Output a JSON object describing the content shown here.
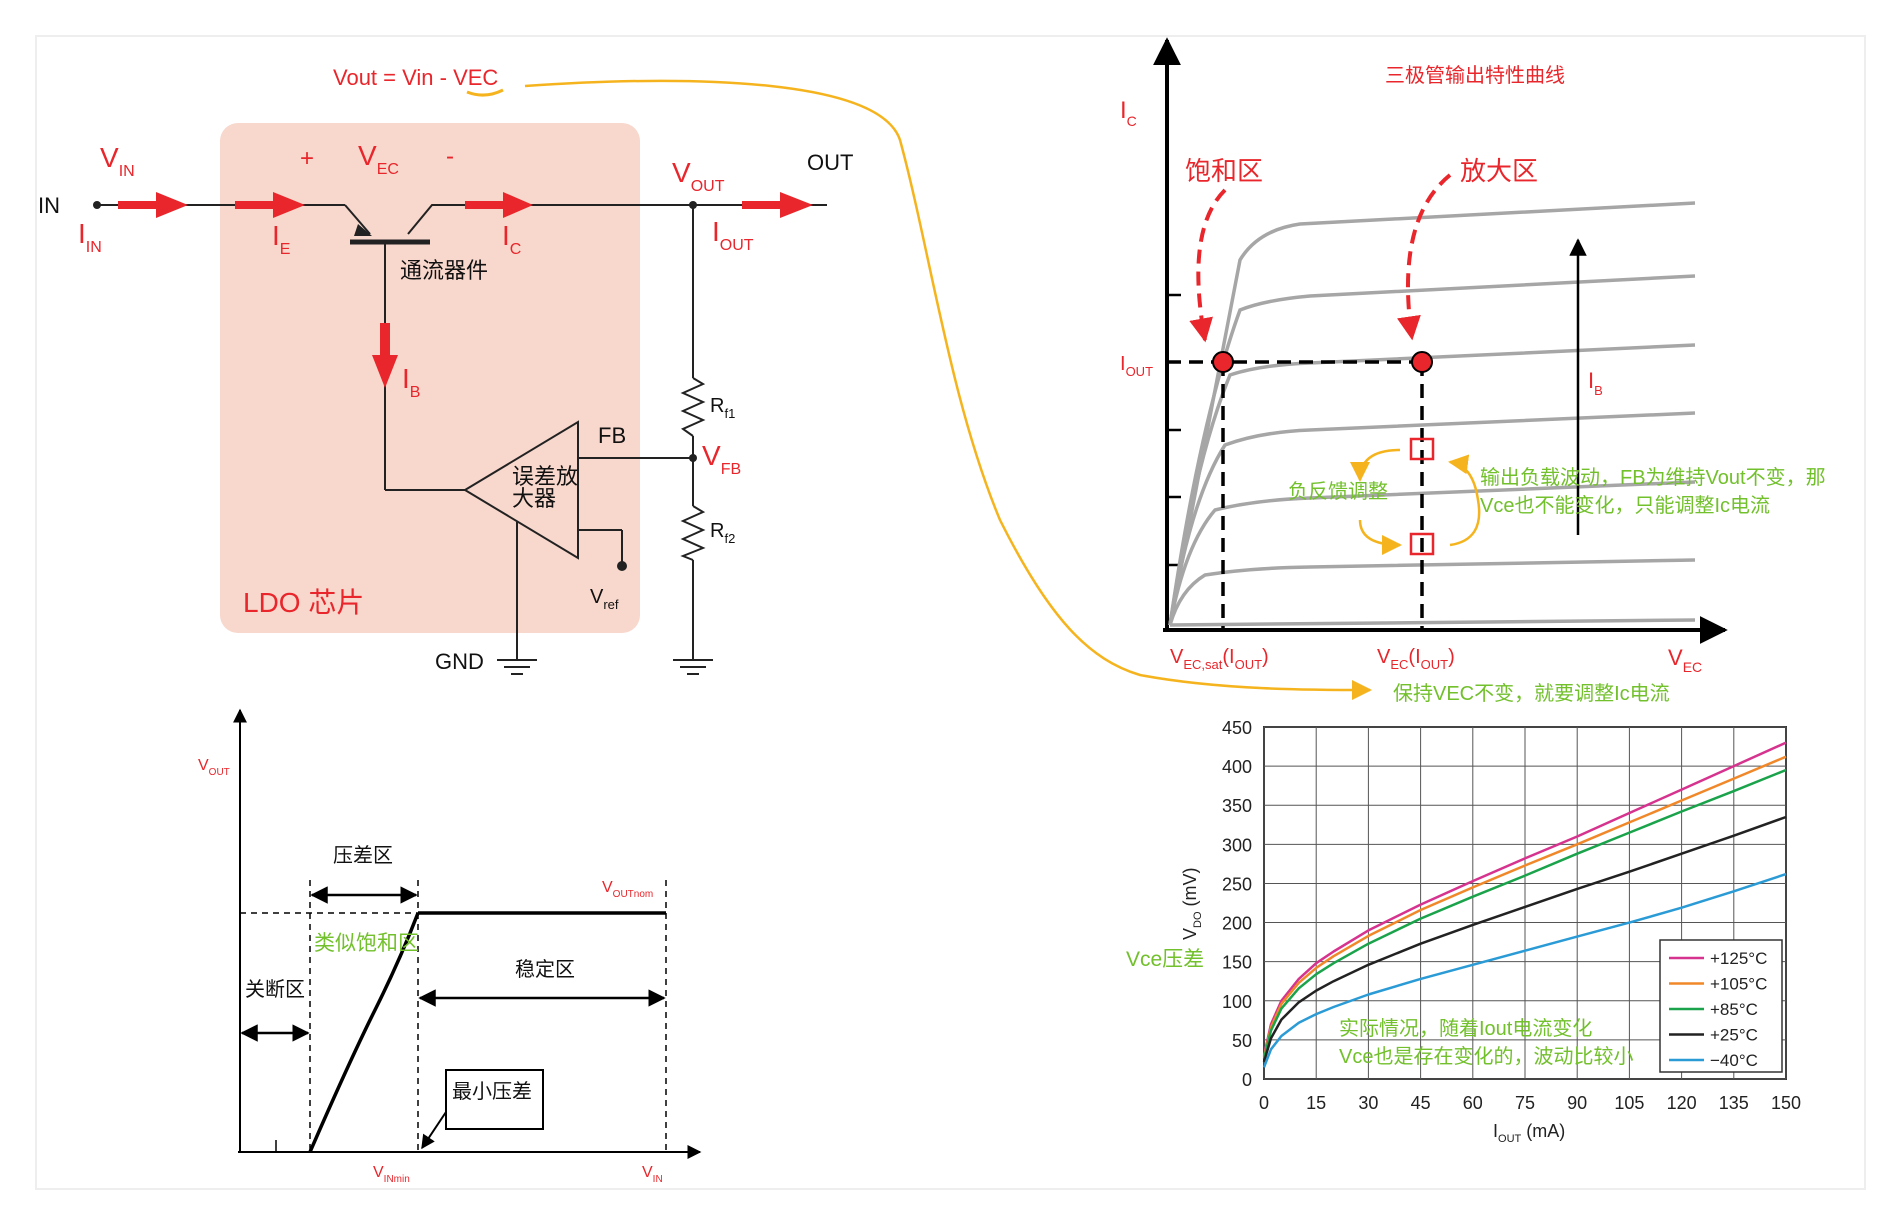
{
  "formula": "Vout = Vin - VEC",
  "ldo": {
    "chip_label": "LDO 芯片",
    "in_label": "IN",
    "out_label": "OUT",
    "gnd_label": "GND",
    "fb_label": "FB",
    "pass_device": "通流器件",
    "amp_line1": "误差放",
    "amp_line2": "大器",
    "plus": "+",
    "minus": "-",
    "v_in": {
      "main": "V",
      "sub": "IN"
    },
    "i_in": {
      "main": "I",
      "sub": "IN"
    },
    "i_e": {
      "main": "I",
      "sub": "E"
    },
    "v_ec": {
      "main": "V",
      "sub": "EC"
    },
    "i_c": {
      "main": "I",
      "sub": "C"
    },
    "v_out": {
      "main": "V",
      "sub": "OUT"
    },
    "i_out": {
      "main": "I",
      "sub": "OUT"
    },
    "i_b": {
      "main": "I",
      "sub": "B"
    },
    "r_f1": {
      "main": "R",
      "sub": "f1"
    },
    "r_f2": {
      "main": "R",
      "sub": "f2"
    },
    "v_fb": {
      "main": "V",
      "sub": "FB"
    },
    "v_ref": {
      "main": "V",
      "sub": "ref"
    }
  },
  "transistor_chart": {
    "title": "三极管输出特性曲线",
    "y_axis": {
      "main": "I",
      "sub": "C"
    },
    "x_axis": {
      "main": "V",
      "sub": "EC"
    },
    "iout_label": {
      "main": "I",
      "sub": "OUT"
    },
    "ib_label": {
      "main": "I",
      "sub": "B"
    },
    "saturation_region": "饱和区",
    "amplification_region": "放大区",
    "x_mark_sat": "V",
    "x_mark_sat_sub": "EC,sat",
    "x_mark_sat_paren": "(I",
    "x_mark_sat_paren_sub": "OUT",
    "x_mark_sat_close": ")",
    "x_mark_ec": "V",
    "x_mark_ec_sub": "EC",
    "x_mark_ec_paren": "(I",
    "x_mark_ec_paren_sub": "OUT",
    "x_mark_ec_close": ")",
    "feedback_label": "负反馈调整",
    "note_line1": "输出负载波动，FB为维持Vout不变，那",
    "note_line2": "Vce也不能变化，只能调整Ic电流",
    "keep_note": "保持VEC不变，就要调整Ic电流"
  },
  "dropout_chart": {
    "y_axis": {
      "main": "V",
      "sub": "OUT"
    },
    "x_axis": {
      "main": "V",
      "sub": "IN"
    },
    "x_min": {
      "main": "V",
      "sub": "INmin"
    },
    "vout_nom": {
      "main": "V",
      "sub": "OUTnom"
    },
    "dropout_region": "压差区",
    "similar_saturation": "类似饱和区",
    "shutdown_region": "关断区",
    "stable_region": "稳定区",
    "min_dropout": "最小压差"
  },
  "chart_data": {
    "type": "line",
    "title": "",
    "xlabel": "I_OUT (mA)",
    "xlabel_main": "I",
    "xlabel_sub": "OUT",
    "xlabel_unit": " (mA)",
    "ylabel_main": "V",
    "ylabel_sub": "DO",
    "ylabel_unit": " (mV)",
    "xlim": [
      0,
      150
    ],
    "ylim": [
      0,
      450
    ],
    "xticks": [
      0,
      15,
      30,
      45,
      60,
      75,
      90,
      105,
      120,
      135,
      150
    ],
    "yticks": [
      0,
      50,
      100,
      150,
      200,
      250,
      300,
      350,
      400,
      450
    ],
    "grid": true,
    "legend_position": "bottom-right",
    "x": [
      0,
      2,
      5,
      10,
      15,
      20,
      30,
      45,
      60,
      75,
      90,
      105,
      120,
      135,
      150
    ],
    "series": [
      {
        "name": "+125°C",
        "color": "#d6338f",
        "values": [
          30,
          70,
          100,
          128,
          148,
          163,
          190,
          223,
          253,
          282,
          310,
          340,
          370,
          400,
          430
        ]
      },
      {
        "name": "+105°C",
        "color": "#f0882a",
        "values": [
          28,
          66,
          96,
          123,
          142,
          157,
          183,
          216,
          245,
          273,
          300,
          328,
          356,
          384,
          412
        ]
      },
      {
        "name": "+85°C",
        "color": "#1aa34a",
        "values": [
          26,
          62,
          90,
          116,
          134,
          148,
          173,
          205,
          233,
          260,
          288,
          315,
          342,
          368,
          395
        ]
      },
      {
        "name": "+25°C",
        "color": "#222222",
        "values": [
          22,
          52,
          76,
          98,
          113,
          125,
          146,
          173,
          197,
          220,
          243,
          265,
          288,
          311,
          335
        ]
      },
      {
        "name": "−40°C",
        "color": "#2b9bd6",
        "values": [
          15,
          38,
          55,
          72,
          83,
          92,
          108,
          128,
          146,
          164,
          182,
          200,
          219,
          240,
          262
        ]
      }
    ],
    "annotations": {
      "vce_dropout": "Vce压差",
      "actual_line1": "实际情况，随着Iout电流变化",
      "actual_line2": "Vce也是存在变化的，波动比较小"
    }
  },
  "colors": {
    "accent_red": "#e8262b",
    "chip_fill": "#f8d7cc",
    "note_green": "#72c02c",
    "link_yellow": "#f5b41e"
  }
}
